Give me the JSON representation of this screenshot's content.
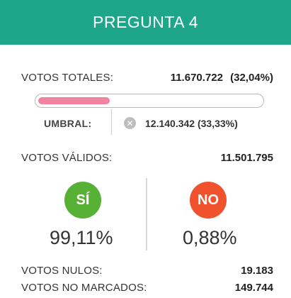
{
  "header": {
    "title": "PREGUNTA 4",
    "bg_color": "#1da68a"
  },
  "votos_totales": {
    "label": "VOTOS TOTALES:",
    "value": "11.670.722",
    "percent": "(32,04%)",
    "progress_fraction": 0.3204,
    "bar_color": "#f0849f"
  },
  "umbral": {
    "label": "UMBRAL:",
    "icon": "x-circle-icon",
    "icon_glyph": "✕",
    "value": "12.140.342 (33,33%)"
  },
  "votos_validos": {
    "label": "VOTOS VÁLIDOS:",
    "value": "11.501.795"
  },
  "si": {
    "label": "SÍ",
    "percent": "99,11%",
    "color": "#56b134"
  },
  "no": {
    "label": "NO",
    "percent": "0,88%",
    "color": "#f0522d"
  },
  "votos_nulos": {
    "label": "VOTOS NULOS:",
    "value": "19.183"
  },
  "votos_no_marcados": {
    "label": "VOTOS NO MARCADOS:",
    "value": "149.744"
  }
}
